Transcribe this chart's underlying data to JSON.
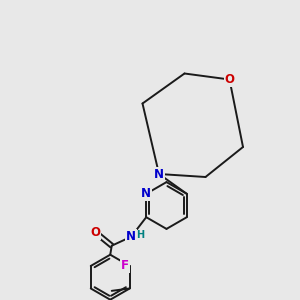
{
  "bg_color": "#e8e8e8",
  "bond_color": "#1a1a1a",
  "bond_width": 1.4,
  "atom_colors": {
    "N": "#0000cc",
    "O": "#cc0000",
    "F": "#cc00cc",
    "C": "#1a1a1a",
    "H": "#008080"
  },
  "font_size": 8.5,
  "font_size_small": 7.5
}
